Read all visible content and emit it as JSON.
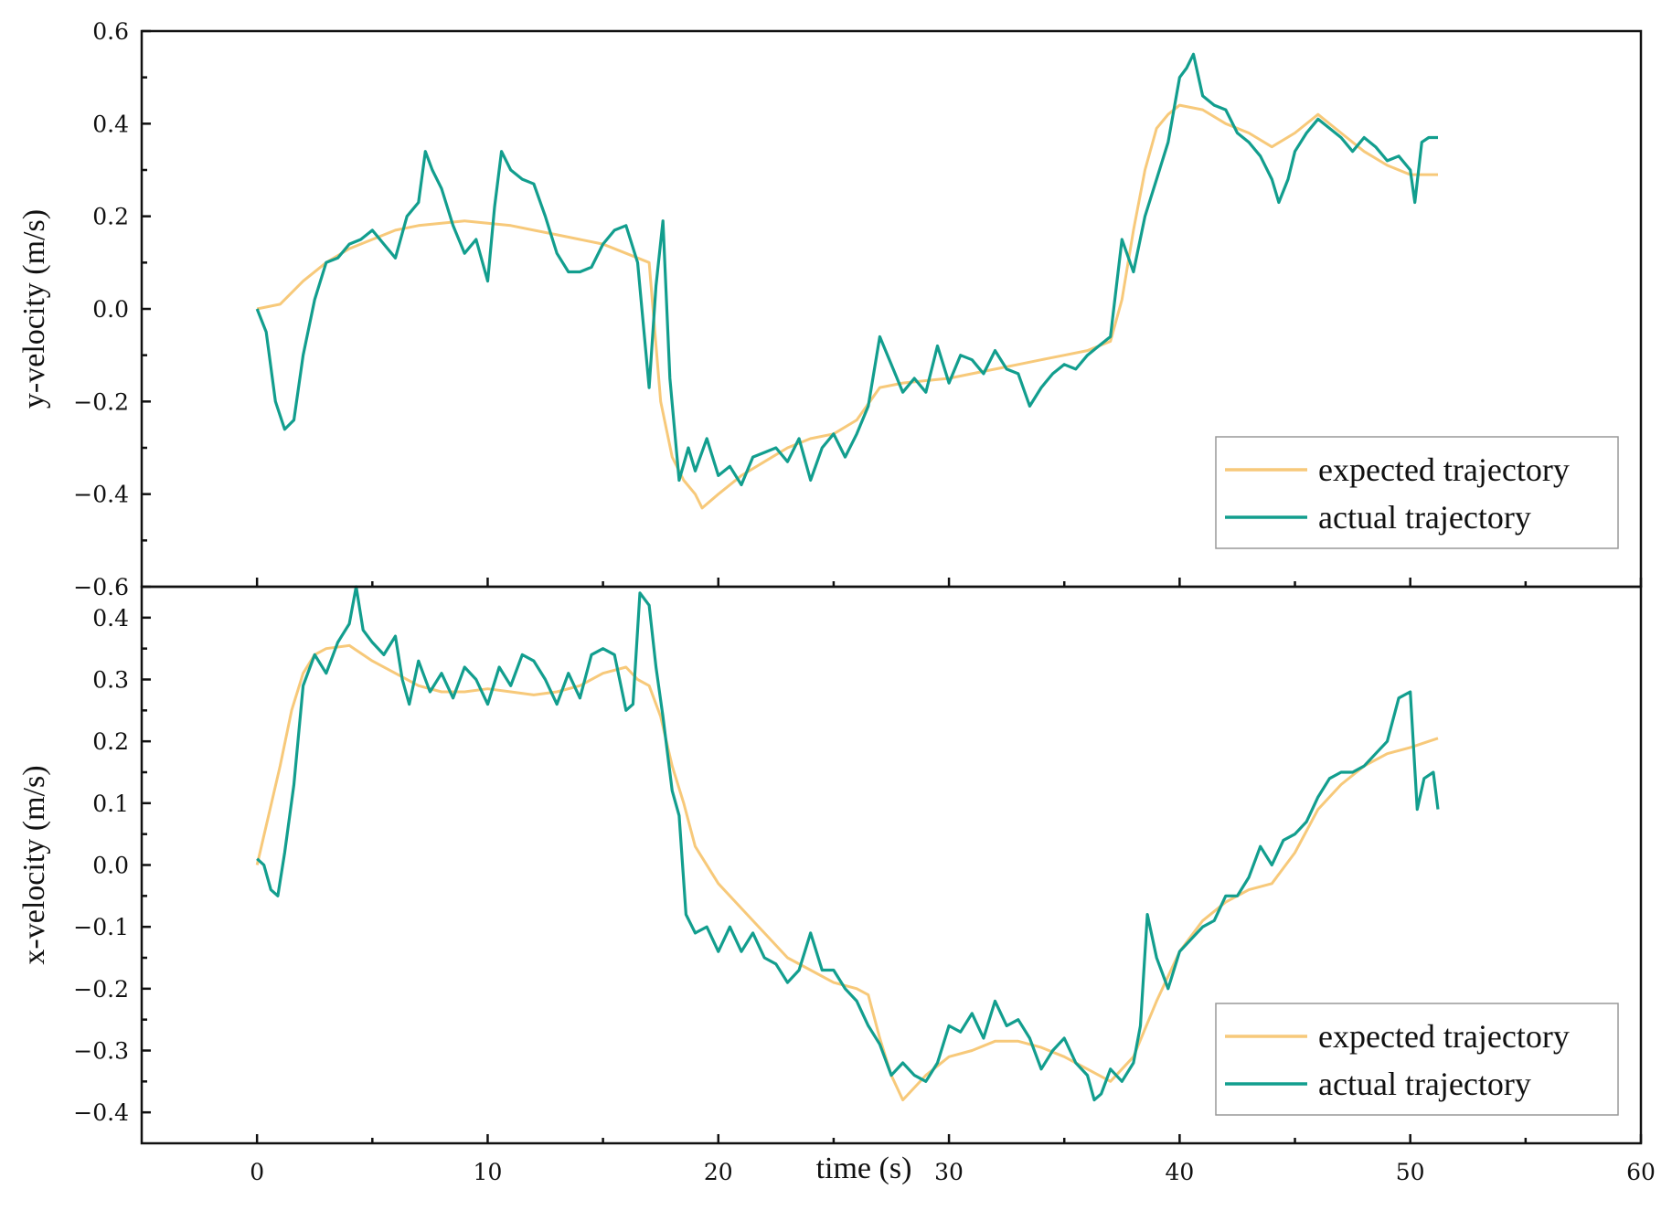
{
  "chart_data": [
    {
      "type": "line",
      "xlabel": "time (s)",
      "ylabel": "y-velocity (m/s)",
      "xlim": [
        -5,
        60
      ],
      "ylim": [
        -0.6,
        0.6
      ],
      "xticks": [
        0,
        10,
        20,
        30,
        40,
        50,
        60
      ],
      "yticks": [
        -0.6,
        -0.4,
        -0.2,
        0.0,
        0.2,
        0.4,
        0.6
      ],
      "ytick_labels": [
        "−0.6",
        "−0.4",
        "−0.2",
        "0.0",
        "0.2",
        "0.4",
        "0.6"
      ],
      "legend_position": "lower-right",
      "series": [
        {
          "name": "expected trajectory",
          "color": "#f7c97a",
          "x": [
            0,
            1,
            2,
            3,
            4,
            5,
            6,
            7,
            8,
            9,
            10,
            11,
            12,
            13,
            14,
            15,
            16,
            17,
            17.5,
            18,
            18.5,
            19,
            19.3,
            20,
            21,
            22,
            23,
            24,
            25,
            26,
            27,
            28,
            29,
            30,
            31,
            32,
            33,
            34,
            35,
            36,
            37,
            37.5,
            38,
            38.5,
            39,
            39.5,
            40,
            41,
            42,
            43,
            44,
            45,
            46,
            47,
            48,
            49,
            50,
            51.2
          ],
          "values": [
            0.0,
            0.01,
            0.06,
            0.1,
            0.13,
            0.15,
            0.17,
            0.18,
            0.185,
            0.19,
            0.185,
            0.18,
            0.17,
            0.16,
            0.15,
            0.14,
            0.12,
            0.1,
            -0.2,
            -0.32,
            -0.37,
            -0.4,
            -0.43,
            -0.4,
            -0.36,
            -0.33,
            -0.3,
            -0.28,
            -0.27,
            -0.24,
            -0.17,
            -0.16,
            -0.155,
            -0.15,
            -0.14,
            -0.13,
            -0.12,
            -0.11,
            -0.1,
            -0.09,
            -0.07,
            0.02,
            0.17,
            0.3,
            0.39,
            0.42,
            0.44,
            0.43,
            0.4,
            0.38,
            0.35,
            0.38,
            0.42,
            0.38,
            0.34,
            0.31,
            0.29,
            0.29
          ]
        },
        {
          "name": "actual trajectory",
          "color": "#129e8e",
          "x": [
            0,
            0.4,
            0.8,
            1.2,
            1.6,
            2,
            2.5,
            3,
            3.5,
            4,
            4.5,
            5,
            5.5,
            6,
            6.5,
            7,
            7.3,
            7.6,
            8,
            8.5,
            9,
            9.5,
            10,
            10.3,
            10.6,
            11,
            11.5,
            12,
            12.5,
            13,
            13.5,
            14,
            14.5,
            15,
            15.5,
            16,
            16.5,
            17,
            17.3,
            17.6,
            17.9,
            18.3,
            18.7,
            19,
            19.5,
            20,
            20.5,
            21,
            21.5,
            22,
            22.5,
            23,
            23.5,
            24,
            24.5,
            25,
            25.5,
            26,
            26.5,
            27,
            27.5,
            28,
            28.5,
            29,
            29.5,
            30,
            30.5,
            31,
            31.5,
            32,
            32.5,
            33,
            33.5,
            34,
            34.5,
            35,
            35.5,
            36,
            36.5,
            37,
            37.5,
            38,
            38.5,
            39,
            39.5,
            40,
            40.3,
            40.6,
            41,
            41.5,
            42,
            42.5,
            43,
            43.5,
            44,
            44.3,
            44.7,
            45,
            45.5,
            46,
            46.5,
            47,
            47.5,
            48,
            48.5,
            49,
            49.5,
            50,
            50.2,
            50.5,
            50.8,
            51.2
          ],
          "values": [
            0.0,
            -0.05,
            -0.2,
            -0.26,
            -0.24,
            -0.1,
            0.02,
            0.1,
            0.11,
            0.14,
            0.15,
            0.17,
            0.14,
            0.11,
            0.2,
            0.23,
            0.34,
            0.3,
            0.26,
            0.18,
            0.12,
            0.15,
            0.06,
            0.22,
            0.34,
            0.3,
            0.28,
            0.27,
            0.2,
            0.12,
            0.08,
            0.08,
            0.09,
            0.14,
            0.17,
            0.18,
            0.1,
            -0.17,
            0.05,
            0.19,
            -0.15,
            -0.37,
            -0.3,
            -0.35,
            -0.28,
            -0.36,
            -0.34,
            -0.38,
            -0.32,
            -0.31,
            -0.3,
            -0.33,
            -0.28,
            -0.37,
            -0.3,
            -0.27,
            -0.32,
            -0.27,
            -0.21,
            -0.06,
            -0.12,
            -0.18,
            -0.15,
            -0.18,
            -0.08,
            -0.16,
            -0.1,
            -0.11,
            -0.14,
            -0.09,
            -0.13,
            -0.14,
            -0.21,
            -0.17,
            -0.14,
            -0.12,
            -0.13,
            -0.1,
            -0.08,
            -0.06,
            0.15,
            0.08,
            0.2,
            0.28,
            0.36,
            0.5,
            0.52,
            0.55,
            0.46,
            0.44,
            0.43,
            0.38,
            0.36,
            0.33,
            0.28,
            0.23,
            0.28,
            0.34,
            0.38,
            0.41,
            0.39,
            0.37,
            0.34,
            0.37,
            0.35,
            0.32,
            0.33,
            0.3,
            0.23,
            0.36,
            0.37,
            0.37
          ]
        }
      ]
    },
    {
      "type": "line",
      "xlabel": "time (s)",
      "ylabel": "x-velocity (m/s)",
      "xlim": [
        -5,
        60
      ],
      "ylim": [
        -0.45,
        0.45
      ],
      "xticks": [
        0,
        10,
        20,
        30,
        40,
        50,
        60
      ],
      "yticks": [
        -0.4,
        -0.3,
        -0.2,
        -0.1,
        0.0,
        0.1,
        0.2,
        0.3,
        0.4
      ],
      "ytick_labels": [
        "−0.4",
        "−0.3",
        "−0.2",
        "−0.1",
        "0.0",
        "0.1",
        "0.2",
        "0.3",
        "0.4"
      ],
      "legend_position": "lower-right",
      "series": [
        {
          "name": "expected trajectory",
          "color": "#f7c97a",
          "x": [
            0,
            0.5,
            1,
            1.5,
            2,
            2.5,
            3,
            4,
            5,
            6,
            7,
            8,
            9,
            10,
            11,
            12,
            13,
            14,
            15,
            16,
            16.5,
            17,
            17.5,
            18,
            18.5,
            19,
            20,
            21,
            22,
            23,
            24,
            25,
            26,
            26.5,
            27,
            27.5,
            28,
            28.5,
            29,
            30,
            31,
            32,
            33,
            34,
            35,
            36,
            37,
            38,
            39,
            40,
            41,
            42,
            43,
            44,
            45,
            46,
            47,
            48,
            49,
            50,
            51.2
          ],
          "values": [
            0.0,
            0.08,
            0.16,
            0.25,
            0.31,
            0.34,
            0.35,
            0.355,
            0.33,
            0.31,
            0.29,
            0.28,
            0.28,
            0.285,
            0.28,
            0.275,
            0.28,
            0.29,
            0.31,
            0.32,
            0.3,
            0.29,
            0.24,
            0.16,
            0.1,
            0.03,
            -0.03,
            -0.07,
            -0.11,
            -0.15,
            -0.17,
            -0.19,
            -0.2,
            -0.21,
            -0.28,
            -0.34,
            -0.38,
            -0.36,
            -0.34,
            -0.31,
            -0.3,
            -0.285,
            -0.285,
            -0.295,
            -0.31,
            -0.33,
            -0.35,
            -0.31,
            -0.22,
            -0.14,
            -0.09,
            -0.06,
            -0.04,
            -0.03,
            0.02,
            0.09,
            0.13,
            0.16,
            0.18,
            0.19,
            0.205
          ]
        },
        {
          "name": "actual trajectory",
          "color": "#129e8e",
          "x": [
            0,
            0.3,
            0.6,
            0.9,
            1.2,
            1.6,
            2,
            2.5,
            3,
            3.5,
            4,
            4.3,
            4.6,
            5,
            5.5,
            6,
            6.3,
            6.6,
            7,
            7.5,
            8,
            8.5,
            9,
            9.5,
            10,
            10.5,
            11,
            11.5,
            12,
            12.5,
            13,
            13.5,
            14,
            14.5,
            15,
            15.5,
            16,
            16.3,
            16.6,
            17,
            17.3,
            17.6,
            18,
            18.3,
            18.6,
            19,
            19.5,
            20,
            20.5,
            21,
            21.5,
            22,
            22.5,
            23,
            23.5,
            24,
            24.5,
            25,
            25.5,
            26,
            26.5,
            27,
            27.5,
            28,
            28.5,
            29,
            29.5,
            30,
            30.5,
            31,
            31.5,
            32,
            32.5,
            33,
            33.5,
            34,
            34.5,
            35,
            35.5,
            36,
            36.3,
            36.6,
            37,
            37.5,
            38,
            38.3,
            38.6,
            39,
            39.5,
            40,
            40.5,
            41,
            41.5,
            42,
            42.5,
            43,
            43.5,
            44,
            44.5,
            45,
            45.5,
            46,
            46.5,
            47,
            47.5,
            48,
            48.5,
            49,
            49.5,
            50,
            50.3,
            50.6,
            51,
            51.2
          ],
          "values": [
            0.01,
            0.0,
            -0.04,
            -0.05,
            0.02,
            0.13,
            0.29,
            0.34,
            0.31,
            0.36,
            0.39,
            0.45,
            0.38,
            0.36,
            0.34,
            0.37,
            0.3,
            0.26,
            0.33,
            0.28,
            0.31,
            0.27,
            0.32,
            0.3,
            0.26,
            0.32,
            0.29,
            0.34,
            0.33,
            0.3,
            0.26,
            0.31,
            0.27,
            0.34,
            0.35,
            0.34,
            0.25,
            0.26,
            0.44,
            0.42,
            0.32,
            0.24,
            0.12,
            0.08,
            -0.08,
            -0.11,
            -0.1,
            -0.14,
            -0.1,
            -0.14,
            -0.11,
            -0.15,
            -0.16,
            -0.19,
            -0.17,
            -0.11,
            -0.17,
            -0.17,
            -0.2,
            -0.22,
            -0.26,
            -0.29,
            -0.34,
            -0.32,
            -0.34,
            -0.35,
            -0.32,
            -0.26,
            -0.27,
            -0.24,
            -0.28,
            -0.22,
            -0.26,
            -0.25,
            -0.28,
            -0.33,
            -0.3,
            -0.28,
            -0.32,
            -0.34,
            -0.38,
            -0.37,
            -0.33,
            -0.35,
            -0.32,
            -0.26,
            -0.08,
            -0.15,
            -0.2,
            -0.14,
            -0.12,
            -0.1,
            -0.09,
            -0.05,
            -0.05,
            -0.02,
            0.03,
            0.0,
            0.04,
            0.05,
            0.07,
            0.11,
            0.14,
            0.15,
            0.15,
            0.16,
            0.18,
            0.2,
            0.27,
            0.28,
            0.09,
            0.14,
            0.15,
            0.09
          ]
        }
      ]
    }
  ]
}
